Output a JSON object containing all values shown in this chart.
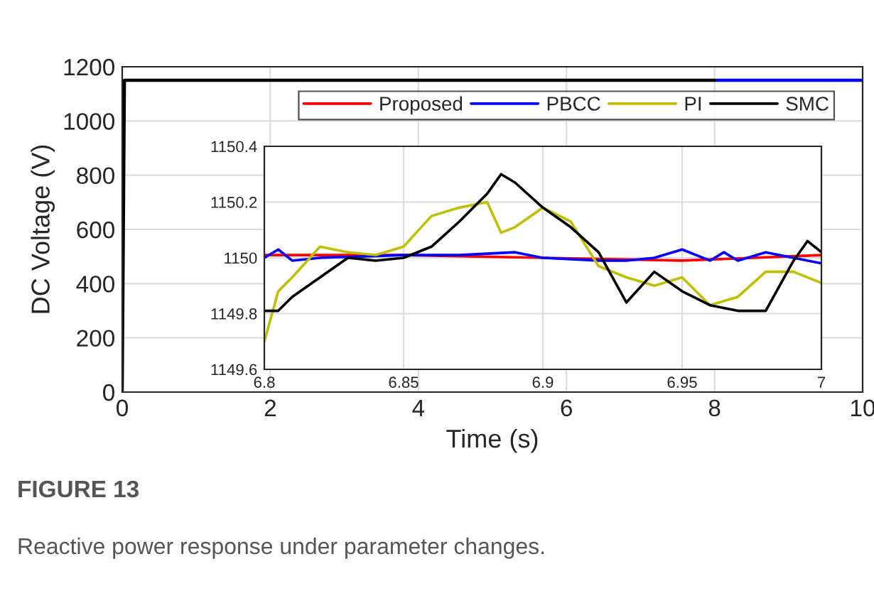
{
  "chart_data": [
    {
      "type": "line",
      "xlabel": "Time (s)",
      "ylabel": "DC Voltage (V)",
      "xlim": [
        0,
        10
      ],
      "ylim": [
        0,
        1200
      ],
      "xticks": [
        0,
        2,
        4,
        6,
        8,
        10
      ],
      "yticks": [
        0,
        200,
        400,
        600,
        800,
        1000,
        1200
      ],
      "grid": true,
      "legend": "top",
      "line_style": "solid",
      "annotations": [
        "FIGURE 13",
        "Reactive power response under parameter changes."
      ],
      "series": [
        {
          "name": "Proposed",
          "color": "#ff0000"
        },
        {
          "name": "PBCC",
          "color": "#0000ff",
          "x": [
            8,
            10
          ],
          "values": [
            1150,
            1150
          ]
        },
        {
          "name": "PI",
          "color": "#bfbf00"
        },
        {
          "name": "SMC",
          "color": "#000000",
          "x": [
            0,
            0.03,
            8
          ],
          "values": [
            0,
            1150,
            1150
          ]
        }
      ]
    },
    {
      "type": "line",
      "xlim": [
        6.8,
        7
      ],
      "ylim": [
        1149.6,
        1150.4
      ],
      "xticks": [
        6.8,
        6.85,
        6.9,
        6.95,
        7
      ],
      "yticks": [
        1149.6,
        1149.8,
        1150,
        1150.2,
        1150.4
      ],
      "grid": true,
      "line_style": "solid",
      "series": [
        {
          "color": "#ff0000",
          "x": [
            6.8,
            6.85,
            6.9,
            6.95,
            7.0
          ],
          "values": [
            1150.01,
            1150.01,
            1150.0,
            1149.99,
            1150.01
          ]
        },
        {
          "color": "#0000ff",
          "x": [
            6.8,
            6.805,
            6.81,
            6.82,
            6.85,
            6.87,
            6.89,
            6.9,
            6.92,
            6.93,
            6.94,
            6.95,
            6.96,
            6.965,
            6.97,
            6.98,
            6.99,
            7.0
          ],
          "values": [
            1150.0,
            1150.03,
            1149.99,
            1150.0,
            1150.01,
            1150.01,
            1150.02,
            1150.0,
            1149.99,
            1149.99,
            1150.0,
            1150.03,
            1149.99,
            1150.02,
            1149.99,
            1150.02,
            1150.0,
            1149.98
          ]
        },
        {
          "color": "#bfbf00",
          "x": [
            6.8,
            6.805,
            6.81,
            6.82,
            6.83,
            6.84,
            6.85,
            6.86,
            6.87,
            6.88,
            6.885,
            6.89,
            6.9,
            6.91,
            6.92,
            6.93,
            6.94,
            6.95,
            6.96,
            6.97,
            6.98,
            6.99,
            7.0
          ],
          "values": [
            1149.7,
            1149.88,
            1149.93,
            1150.04,
            1150.02,
            1150.01,
            1150.04,
            1150.15,
            1150.18,
            1150.2,
            1150.09,
            1150.11,
            1150.18,
            1150.13,
            1149.97,
            1149.93,
            1149.9,
            1149.93,
            1149.83,
            1149.86,
            1149.95,
            1149.95,
            1149.91
          ]
        },
        {
          "color": "#000000",
          "x": [
            6.8,
            6.805,
            6.81,
            6.82,
            6.83,
            6.84,
            6.85,
            6.86,
            6.87,
            6.88,
            6.885,
            6.89,
            6.9,
            6.91,
            6.92,
            6.93,
            6.94,
            6.95,
            6.96,
            6.97,
            6.98,
            6.99,
            6.995,
            7.0
          ],
          "values": [
            1149.81,
            1149.81,
            1149.86,
            1149.93,
            1150.0,
            1149.99,
            1150.0,
            1150.04,
            1150.13,
            1150.23,
            1150.3,
            1150.27,
            1150.18,
            1150.11,
            1150.02,
            1149.84,
            1149.95,
            1149.88,
            1149.83,
            1149.81,
            1149.81,
            1149.99,
            1150.06,
            1150.02
          ]
        }
      ]
    }
  ]
}
